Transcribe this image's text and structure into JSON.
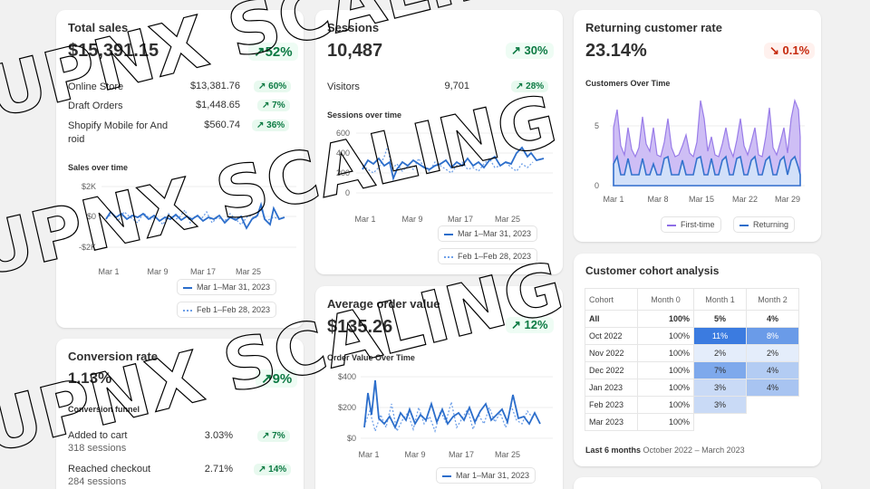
{
  "total_sales": {
    "title": "Total sales",
    "value": "$15,391.15",
    "change": "↗52%",
    "rows": [
      {
        "label": "Online Store",
        "value": "$13,381.76",
        "change": "↗ 60%"
      },
      {
        "label": "Draft Orders",
        "value": "$1,448.65",
        "change": "↗ 7%"
      },
      {
        "label": "Shopify Mobile for And roid",
        "value": "$560.74",
        "change": "↗ 36%"
      }
    ],
    "chart_title": "Sales over time",
    "y_ticks": [
      "$2K",
      "$0",
      "-$2K"
    ],
    "x_ticks": [
      "Mar 1",
      "Mar 9",
      "Mar 17",
      "Mar 25"
    ],
    "legend_current": "Mar 1–Mar 31, 2023",
    "legend_previous": "Feb 1–Feb 28, 2023"
  },
  "sessions": {
    "title": "Sessions",
    "value": "10,487",
    "change": "↗ 30%",
    "rows": [
      {
        "label": "Visitors",
        "value": "9,701",
        "change": "↗ 28%"
      }
    ],
    "chart_title": "Sessions over time",
    "y_ticks": [
      "600",
      "400",
      "200",
      "0"
    ],
    "x_ticks": [
      "Mar 1",
      "Mar 9",
      "Mar 17",
      "Mar 25"
    ],
    "legend_current": "Mar 1–Mar 31, 2023",
    "legend_previous": "Feb 1–Feb 28, 2023"
  },
  "returning": {
    "title": "Returning customer rate",
    "value": "23.14%",
    "change": "↘ 0.1%",
    "chart_title": "Customers Over Time",
    "y_ticks": [
      "5",
      "0"
    ],
    "x_ticks": [
      "Mar 1",
      "Mar 8",
      "Mar 15",
      "Mar 22",
      "Mar 29"
    ],
    "legend_first": "First-time",
    "legend_returning": "Returning"
  },
  "conversion": {
    "title": "Conversion rate",
    "value": "1.13%",
    "change": "↗9%",
    "funnel_title": "Conversion funnel",
    "rows": [
      {
        "label": "Added to cart",
        "sub": "318 sessions",
        "value": "3.03%",
        "change": "↗ 7%"
      },
      {
        "label": "Reached checkout",
        "sub": "284 sessions",
        "value": "2.71%",
        "change": "↗ 14%"
      }
    ]
  },
  "aov": {
    "title": "Average order value",
    "value": "$135.26",
    "change": "↗ 12%",
    "chart_title": "Order Value Over Time",
    "y_ticks": [
      "$400",
      "$200",
      "$0"
    ],
    "x_ticks": [
      "Mar 1",
      "Mar 9",
      "Mar 17",
      "Mar 25"
    ],
    "legend_current": "Mar 1–Mar 31, 2023"
  },
  "cohort": {
    "title": "Customer cohort analysis",
    "headers": [
      "Cohort",
      "Month 0",
      "Month 1",
      "Month 2"
    ],
    "rows": [
      {
        "cohort": "All",
        "m0": "100%",
        "m1": "5%",
        "m2": "4%",
        "bold": true
      },
      {
        "cohort": "Oct 2022",
        "m0": "100%",
        "m1": "11%",
        "m2": "8%"
      },
      {
        "cohort": "Nov 2022",
        "m0": "100%",
        "m1": "2%",
        "m2": "2%"
      },
      {
        "cohort": "Dec 2022",
        "m0": "100%",
        "m1": "7%",
        "m2": "4%"
      },
      {
        "cohort": "Jan 2023",
        "m0": "100%",
        "m1": "3%",
        "m2": "4%"
      },
      {
        "cohort": "Feb 2023",
        "m0": "100%",
        "m1": "3%",
        "m2": ""
      },
      {
        "cohort": "Mar 2023",
        "m0": "100%",
        "m1": "",
        "m2": ""
      }
    ],
    "footer_bold": "Last 6 months",
    "footer_range": "October 2022 – March 2023"
  },
  "watermark": "UPNX SCALING",
  "colors": {
    "accent": "#2c6ecb",
    "previous": "#6fa0e8",
    "positive": "#0c7a43",
    "negative": "#c5280c",
    "first_time_fill": "#c9b8f5",
    "returning_fill": "#d3e2fa"
  }
}
